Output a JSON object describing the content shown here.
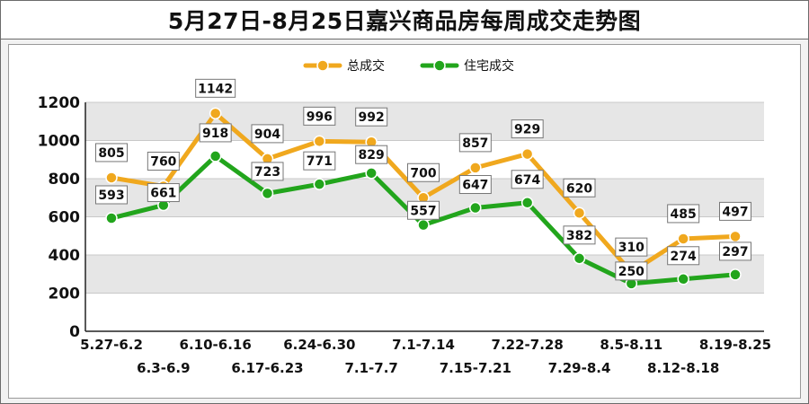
{
  "chart_data": {
    "type": "line",
    "title": "5月27日-8月25日嘉兴商品房每周成交走势图",
    "categories": [
      "5.27-6.2",
      "6.3-6.9",
      "6.10-6.16",
      "6.17-6.23",
      "6.24-6.30",
      "7.1-7.7",
      "7.1-7.14",
      "7.15-7.21",
      "7.22-7.28",
      "7.29-8.4",
      "8.5-8.11",
      "8.12-8.18",
      "8.19-8.25"
    ],
    "series": [
      {
        "name": "总成交",
        "color": "#f0a81e",
        "values": [
          805,
          760,
          1142,
          904,
          996,
          992,
          700,
          857,
          929,
          620,
          310,
          485,
          497
        ]
      },
      {
        "name": "住宅成交",
        "color": "#22a51c",
        "values": [
          593,
          661,
          918,
          723,
          771,
          829,
          557,
          647,
          674,
          382,
          250,
          274,
          297
        ]
      }
    ],
    "ylim": [
      0,
      1200
    ],
    "yticks": [
      0,
      200,
      400,
      600,
      800,
      1000,
      1200
    ],
    "xlabel": "",
    "ylabel": "",
    "grid": true,
    "legend_position": "top-center"
  }
}
